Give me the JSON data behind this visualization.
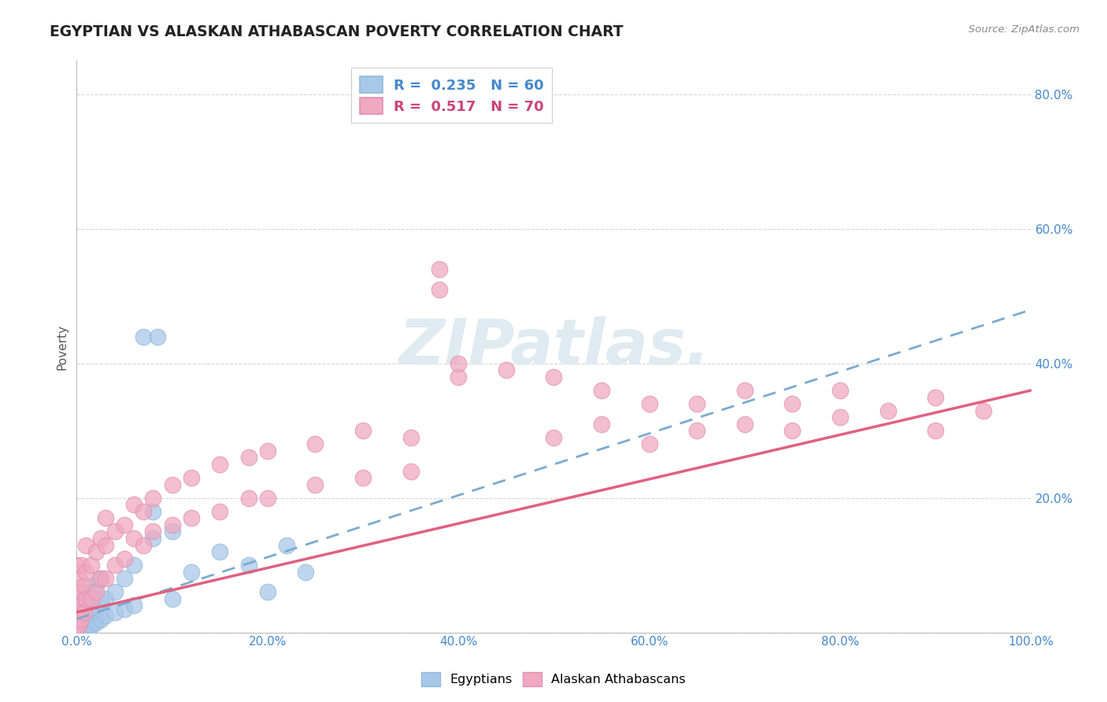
{
  "title": "EGYPTIAN VS ALASKAN ATHABASCAN POVERTY CORRELATION CHART",
  "source_text": "Source: ZipAtlas.com",
  "ylabel": "Poverty",
  "xlim": [
    0,
    1.0
  ],
  "ylim": [
    0,
    0.85
  ],
  "x_ticks": [
    0.0,
    0.2,
    0.4,
    0.6,
    0.8,
    1.0
  ],
  "x_tick_labels": [
    "0.0%",
    "20.0%",
    "40.0%",
    "60.0%",
    "80.0%",
    "100.0%"
  ],
  "y_ticks": [
    0.0,
    0.2,
    0.4,
    0.6,
    0.8
  ],
  "y_tick_labels": [
    "",
    "20.0%",
    "40.0%",
    "60.0%",
    "80.0%"
  ],
  "color_egyptian": "#a8c8e8",
  "color_athabascan": "#f0a8c0",
  "color_line_egyptian": "#7aaad0",
  "color_line_athabascan": "#e06080",
  "background_color": "#ffffff",
  "watermark_color": "#dce8f0",
  "egyptian_points": [
    [
      0.0,
      0.0
    ],
    [
      0.0,
      0.005
    ],
    [
      0.0,
      0.01
    ],
    [
      0.0,
      0.015
    ],
    [
      0.0,
      0.02
    ],
    [
      0.002,
      0.0
    ],
    [
      0.002,
      0.005
    ],
    [
      0.002,
      0.01
    ],
    [
      0.002,
      0.02
    ],
    [
      0.002,
      0.03
    ],
    [
      0.004,
      0.0
    ],
    [
      0.004,
      0.005
    ],
    [
      0.004,
      0.01
    ],
    [
      0.004,
      0.025
    ],
    [
      0.006,
      0.0
    ],
    [
      0.006,
      0.01
    ],
    [
      0.006,
      0.015
    ],
    [
      0.006,
      0.03
    ],
    [
      0.006,
      0.05
    ],
    [
      0.008,
      0.0
    ],
    [
      0.008,
      0.01
    ],
    [
      0.008,
      0.02
    ],
    [
      0.008,
      0.04
    ],
    [
      0.01,
      0.0
    ],
    [
      0.01,
      0.01
    ],
    [
      0.01,
      0.02
    ],
    [
      0.01,
      0.06
    ],
    [
      0.012,
      0.005
    ],
    [
      0.012,
      0.02
    ],
    [
      0.012,
      0.04
    ],
    [
      0.015,
      0.01
    ],
    [
      0.015,
      0.025
    ],
    [
      0.015,
      0.06
    ],
    [
      0.02,
      0.015
    ],
    [
      0.02,
      0.035
    ],
    [
      0.02,
      0.07
    ],
    [
      0.025,
      0.02
    ],
    [
      0.025,
      0.045
    ],
    [
      0.025,
      0.08
    ],
    [
      0.03,
      0.025
    ],
    [
      0.03,
      0.05
    ],
    [
      0.04,
      0.03
    ],
    [
      0.04,
      0.06
    ],
    [
      0.05,
      0.035
    ],
    [
      0.05,
      0.08
    ],
    [
      0.06,
      0.04
    ],
    [
      0.06,
      0.1
    ],
    [
      0.07,
      0.44
    ],
    [
      0.085,
      0.44
    ],
    [
      0.08,
      0.14
    ],
    [
      0.1,
      0.05
    ],
    [
      0.12,
      0.09
    ],
    [
      0.15,
      0.12
    ],
    [
      0.18,
      0.1
    ],
    [
      0.2,
      0.06
    ],
    [
      0.22,
      0.13
    ],
    [
      0.24,
      0.09
    ],
    [
      0.08,
      0.18
    ],
    [
      0.1,
      0.15
    ]
  ],
  "athabascan_points": [
    [
      0.0,
      0.01
    ],
    [
      0.0,
      0.03
    ],
    [
      0.0,
      0.06
    ],
    [
      0.0,
      0.1
    ],
    [
      0.002,
      0.01
    ],
    [
      0.002,
      0.04
    ],
    [
      0.002,
      0.08
    ],
    [
      0.005,
      0.02
    ],
    [
      0.005,
      0.06
    ],
    [
      0.005,
      0.1
    ],
    [
      0.008,
      0.03
    ],
    [
      0.008,
      0.07
    ],
    [
      0.01,
      0.05
    ],
    [
      0.01,
      0.09
    ],
    [
      0.01,
      0.13
    ],
    [
      0.015,
      0.05
    ],
    [
      0.015,
      0.1
    ],
    [
      0.02,
      0.06
    ],
    [
      0.02,
      0.12
    ],
    [
      0.025,
      0.08
    ],
    [
      0.025,
      0.14
    ],
    [
      0.03,
      0.08
    ],
    [
      0.03,
      0.13
    ],
    [
      0.03,
      0.17
    ],
    [
      0.04,
      0.1
    ],
    [
      0.04,
      0.15
    ],
    [
      0.05,
      0.11
    ],
    [
      0.05,
      0.16
    ],
    [
      0.06,
      0.14
    ],
    [
      0.06,
      0.19
    ],
    [
      0.07,
      0.13
    ],
    [
      0.07,
      0.18
    ],
    [
      0.08,
      0.15
    ],
    [
      0.08,
      0.2
    ],
    [
      0.1,
      0.16
    ],
    [
      0.1,
      0.22
    ],
    [
      0.12,
      0.17
    ],
    [
      0.12,
      0.23
    ],
    [
      0.15,
      0.18
    ],
    [
      0.15,
      0.25
    ],
    [
      0.18,
      0.2
    ],
    [
      0.18,
      0.26
    ],
    [
      0.2,
      0.2
    ],
    [
      0.2,
      0.27
    ],
    [
      0.25,
      0.22
    ],
    [
      0.25,
      0.28
    ],
    [
      0.3,
      0.23
    ],
    [
      0.3,
      0.3
    ],
    [
      0.35,
      0.24
    ],
    [
      0.35,
      0.29
    ],
    [
      0.38,
      0.51
    ],
    [
      0.38,
      0.54
    ],
    [
      0.4,
      0.38
    ],
    [
      0.4,
      0.4
    ],
    [
      0.45,
      0.39
    ],
    [
      0.5,
      0.29
    ],
    [
      0.5,
      0.38
    ],
    [
      0.55,
      0.31
    ],
    [
      0.55,
      0.36
    ],
    [
      0.6,
      0.28
    ],
    [
      0.6,
      0.34
    ],
    [
      0.65,
      0.3
    ],
    [
      0.65,
      0.34
    ],
    [
      0.7,
      0.31
    ],
    [
      0.7,
      0.36
    ],
    [
      0.75,
      0.3
    ],
    [
      0.75,
      0.34
    ],
    [
      0.8,
      0.32
    ],
    [
      0.8,
      0.36
    ],
    [
      0.85,
      0.33
    ],
    [
      0.9,
      0.3
    ],
    [
      0.9,
      0.35
    ],
    [
      0.95,
      0.33
    ]
  ],
  "eg_line_x": [
    0.0,
    1.0
  ],
  "eg_line_y": [
    0.02,
    0.48
  ],
  "at_line_x": [
    0.0,
    1.0
  ],
  "at_line_y": [
    0.03,
    0.36
  ]
}
